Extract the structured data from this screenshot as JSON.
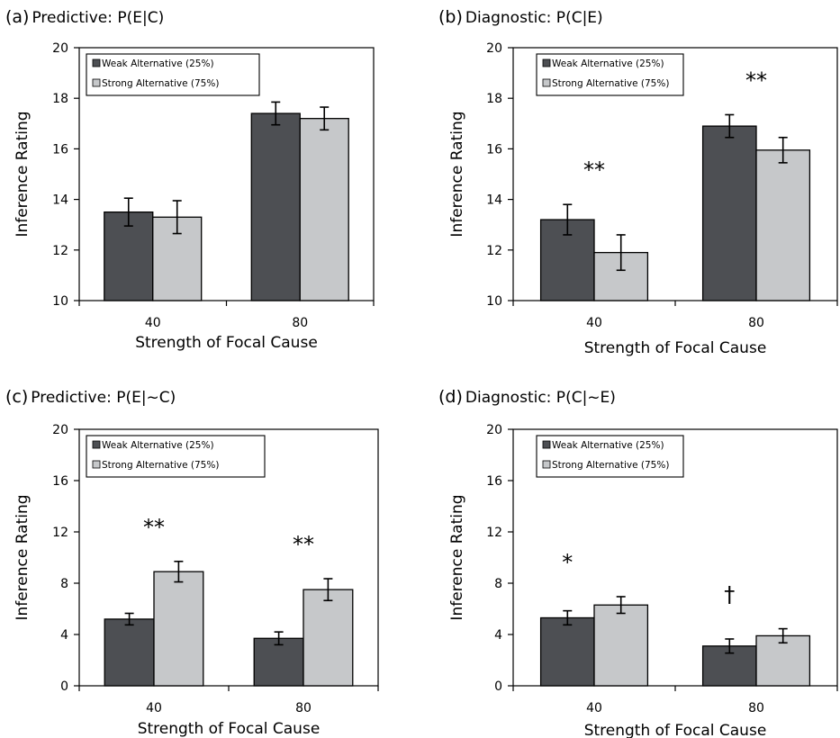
{
  "colors": {
    "weak": "#4d4f53",
    "strong": "#c6c8ca",
    "axis": "#000000"
  },
  "chart_data": [
    {
      "type": "bar",
      "panel_label": "(a)",
      "title": "Predictive: P(E|C)",
      "xlabel": "Strength of Focal Cause",
      "ylabel": "Inference Rating",
      "categories": [
        "40",
        "80"
      ],
      "ylim": [
        10,
        20
      ],
      "yticks": [
        "10",
        "12",
        "14",
        "16",
        "18",
        "20"
      ],
      "legend_position": "top-left",
      "grid": false,
      "series": [
        {
          "name": "Weak Alternative (25%)",
          "values": [
            13.5,
            17.4
          ],
          "errors": [
            0.55,
            0.45
          ]
        },
        {
          "name": "Strong Alternative (75%)",
          "values": [
            13.3,
            17.2
          ],
          "errors": [
            0.65,
            0.45
          ]
        }
      ],
      "annotations": [
        "",
        ""
      ]
    },
    {
      "type": "bar",
      "panel_label": "(b)",
      "title": "Diagnostic: P(C|E)",
      "xlabel": "Strength of Focal Cause",
      "ylabel": "Inference Rating",
      "categories": [
        "40",
        "80"
      ],
      "ylim": [
        10,
        20
      ],
      "yticks": [
        "10",
        "12",
        "14",
        "16",
        "18",
        "20"
      ],
      "legend_position": "top-left",
      "grid": false,
      "series": [
        {
          "name": "Weak Alternative (25%)",
          "values": [
            13.2,
            16.9
          ],
          "errors": [
            0.6,
            0.45
          ]
        },
        {
          "name": "Strong Alternative (75%)",
          "values": [
            11.9,
            15.95
          ],
          "errors": [
            0.7,
            0.5
          ]
        }
      ],
      "annotations": [
        "**",
        "**"
      ]
    },
    {
      "type": "bar",
      "panel_label": "(c)",
      "title": "Predictive: P(E|~C)",
      "xlabel": "Strength of Focal Cause",
      "ylabel": "Inference Rating",
      "categories": [
        "40",
        "80"
      ],
      "ylim": [
        0,
        20
      ],
      "yticks": [
        "0",
        "4",
        "8",
        "12",
        "16",
        "20"
      ],
      "legend_position": "top-left",
      "grid": false,
      "series": [
        {
          "name": "Weak Alternative (25%)",
          "values": [
            5.2,
            3.7
          ],
          "errors": [
            0.45,
            0.5
          ]
        },
        {
          "name": "Strong Alternative (75%)",
          "values": [
            8.9,
            7.5
          ],
          "errors": [
            0.8,
            0.85
          ]
        }
      ],
      "annotations": [
        "**",
        "**"
      ]
    },
    {
      "type": "bar",
      "panel_label": "(d)",
      "title": "Diagnostic: P(C|~E)",
      "xlabel": "Strength of Focal Cause",
      "ylabel": "Inference Rating",
      "categories": [
        "40",
        "80"
      ],
      "ylim": [
        0,
        20
      ],
      "yticks": [
        "0",
        "4",
        "8",
        "12",
        "16",
        "20"
      ],
      "legend_position": "top-left",
      "grid": false,
      "series": [
        {
          "name": "Weak Alternative (25%)",
          "values": [
            5.3,
            3.1
          ],
          "errors": [
            0.55,
            0.55
          ]
        },
        {
          "name": "Strong Alternative (75%)",
          "values": [
            6.3,
            3.9
          ],
          "errors": [
            0.65,
            0.55
          ]
        }
      ],
      "annotations": [
        "*",
        "†"
      ]
    }
  ]
}
